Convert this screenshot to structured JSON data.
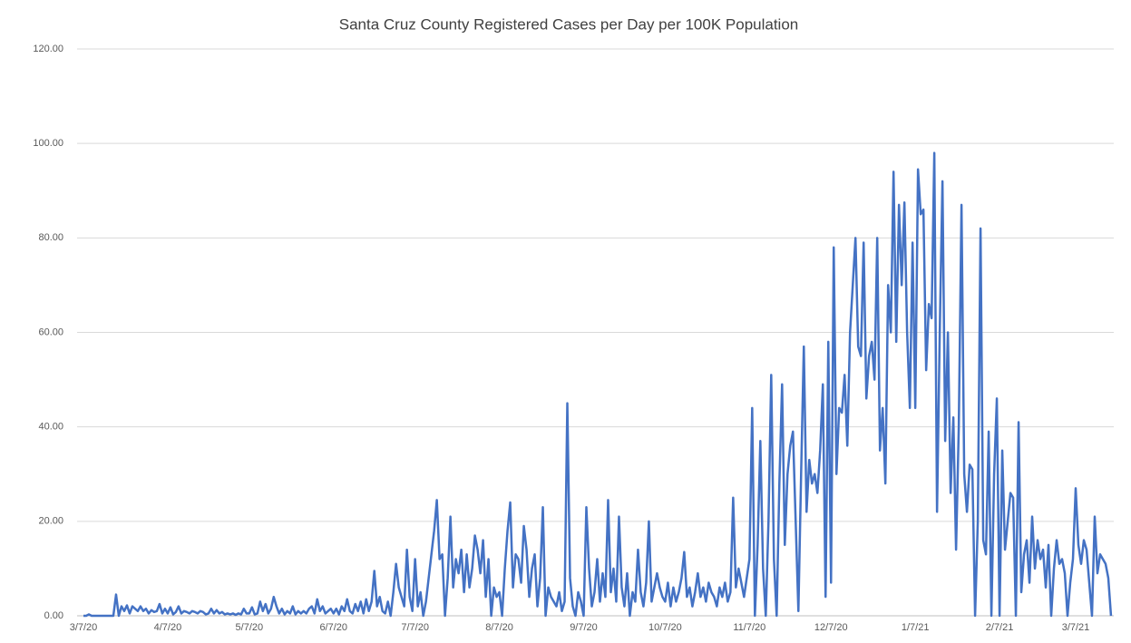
{
  "chart_data": {
    "type": "line",
    "title": "Santa Cruz County Registered Cases per Day per 100K Population",
    "categories": [
      "3/7/20",
      null,
      null,
      null,
      null,
      null,
      null,
      null,
      null,
      null,
      null,
      null,
      null,
      null,
      null,
      null,
      null,
      null,
      null,
      null,
      null,
      null,
      null,
      null,
      null,
      null,
      null,
      null,
      null,
      null,
      null,
      "4/7/20",
      null,
      null,
      null,
      null,
      null,
      null,
      null,
      null,
      null,
      null,
      null,
      null,
      null,
      null,
      null,
      null,
      null,
      null,
      null,
      null,
      null,
      null,
      null,
      null,
      null,
      null,
      null,
      null,
      null,
      "5/7/20",
      null,
      null,
      null,
      null,
      null,
      null,
      null,
      null,
      null,
      null,
      null,
      null,
      null,
      null,
      null,
      null,
      null,
      null,
      null,
      null,
      null,
      null,
      null,
      null,
      null,
      null,
      null,
      null,
      null,
      null,
      "6/7/20",
      null,
      null,
      null,
      null,
      null,
      null,
      null,
      null,
      null,
      null,
      null,
      null,
      null,
      null,
      null,
      null,
      null,
      null,
      null,
      null,
      null,
      null,
      null,
      null,
      null,
      null,
      null,
      null,
      null,
      "7/7/20",
      null,
      null,
      null,
      null,
      null,
      null,
      null,
      null,
      null,
      null,
      null,
      null,
      null,
      null,
      null,
      null,
      null,
      null,
      null,
      null,
      null,
      null,
      null,
      null,
      null,
      null,
      null,
      null,
      null,
      null,
      "8/7/20",
      null,
      null,
      null,
      null,
      null,
      null,
      null,
      null,
      null,
      null,
      null,
      null,
      null,
      null,
      null,
      null,
      null,
      null,
      null,
      null,
      null,
      null,
      null,
      null,
      null,
      null,
      null,
      null,
      null,
      null,
      "9/7/20",
      null,
      null,
      null,
      null,
      null,
      null,
      null,
      null,
      null,
      null,
      null,
      null,
      null,
      null,
      null,
      null,
      null,
      null,
      null,
      null,
      null,
      null,
      null,
      null,
      null,
      null,
      null,
      null,
      null,
      "10/7/20",
      null,
      null,
      null,
      null,
      null,
      null,
      null,
      null,
      null,
      null,
      null,
      null,
      null,
      null,
      null,
      null,
      null,
      null,
      null,
      null,
      null,
      null,
      null,
      null,
      null,
      null,
      null,
      null,
      null,
      null,
      "11/7/20",
      null,
      null,
      null,
      null,
      null,
      null,
      null,
      null,
      null,
      null,
      null,
      null,
      null,
      null,
      null,
      null,
      null,
      null,
      null,
      null,
      null,
      null,
      null,
      null,
      null,
      null,
      null,
      null,
      null,
      "12/7/20",
      null,
      null,
      null,
      null,
      null,
      null,
      null,
      null,
      null,
      null,
      null,
      null,
      null,
      null,
      null,
      null,
      null,
      null,
      null,
      null,
      null,
      null,
      null,
      null,
      null,
      null,
      null,
      null,
      null,
      null,
      "1/7/21",
      null,
      null,
      null,
      null,
      null,
      null,
      null,
      null,
      null,
      null,
      null,
      null,
      null,
      null,
      null,
      null,
      null,
      null,
      null,
      null,
      null,
      null,
      null,
      null,
      null,
      null,
      null,
      null,
      null,
      null,
      "2/7/21",
      null,
      null,
      null,
      null,
      null,
      null,
      null,
      null,
      null,
      null,
      null,
      null,
      null,
      null,
      null,
      null,
      null,
      null,
      null,
      null,
      null,
      null,
      null,
      null,
      null,
      null,
      null,
      "3/7/21",
      null,
      null,
      null,
      null,
      null,
      null,
      null,
      null,
      null,
      null,
      null,
      null,
      null
    ],
    "values": [
      0,
      0,
      0.3,
      0,
      0,
      0,
      0,
      0,
      0,
      0,
      0,
      0,
      4.5,
      0,
      2,
      1,
      2.2,
      0.5,
      2,
      1.5,
      1,
      2,
      1,
      1.5,
      0.5,
      1.2,
      0.8,
      1,
      2.5,
      0.5,
      1.5,
      0.5,
      1.8,
      0.3,
      0.8,
      2,
      0.5,
      1,
      0.8,
      0.5,
      1,
      0.8,
      0.5,
      1,
      0.8,
      0.3,
      0.5,
      1.5,
      0.5,
      1.2,
      0.5,
      0.8,
      0.3,
      0.5,
      0.3,
      0.5,
      0.2,
      0.5,
      0.3,
      1.5,
      0.5,
      0.5,
      1.8,
      0.3,
      0.5,
      3,
      1,
      2.5,
      0.5,
      1.5,
      4,
      2,
      0.5,
      1.5,
      0.3,
      1,
      0.5,
      2,
      0.3,
      1,
      0.5,
      1,
      0.5,
      1.5,
      2,
      0.5,
      3.5,
      1,
      2,
      0.5,
      1,
      1.5,
      0.5,
      1.5,
      0.3,
      2,
      1,
      3.5,
      1,
      0.5,
      2.5,
      1,
      3,
      0.5,
      3.5,
      1,
      3,
      9.5,
      2,
      4,
      1,
      0.5,
      3,
      0,
      5,
      11,
      6,
      4,
      2,
      14,
      4,
      1,
      12,
      2,
      5,
      0,
      3,
      8,
      13,
      18,
      24.5,
      12,
      13,
      0,
      8,
      21,
      6,
      12,
      9,
      14,
      5,
      13,
      6,
      10,
      17,
      14,
      9,
      16,
      4,
      12,
      0,
      6,
      4,
      5,
      0,
      10,
      18,
      24,
      6,
      13,
      12,
      7,
      19,
      14,
      4,
      10,
      13,
      2,
      8,
      23,
      0,
      6,
      4,
      3,
      2,
      5,
      1,
      3,
      45,
      8,
      2,
      0,
      5,
      3,
      0,
      23,
      10,
      2,
      5,
      12,
      3,
      9,
      4,
      24.5,
      5,
      10,
      3,
      21,
      6,
      2,
      9,
      0,
      5,
      3,
      14,
      5,
      2,
      7,
      20,
      3,
      6,
      9,
      6,
      4,
      3,
      7,
      2,
      6,
      3,
      5,
      8,
      13.5,
      4,
      6,
      2,
      5,
      9,
      4,
      6,
      3,
      7,
      5,
      4,
      2,
      6,
      4,
      7,
      3,
      5,
      25,
      6,
      10,
      7,
      4,
      8,
      12,
      44,
      0,
      15,
      37,
      10,
      0,
      20,
      51,
      12,
      0,
      28,
      49,
      15,
      30,
      36,
      39,
      20,
      1,
      30,
      57,
      22,
      33,
      28,
      30,
      26,
      35,
      49,
      4,
      58,
      7,
      78,
      30,
      44,
      43,
      51,
      36,
      60,
      70,
      80,
      57,
      55,
      79,
      46,
      55,
      58,
      50,
      80,
      35,
      44,
      28,
      70,
      60,
      94,
      58,
      87,
      70,
      87.5,
      60,
      44,
      79,
      44,
      94.5,
      85,
      86,
      52,
      66,
      63,
      98,
      22,
      60,
      92,
      37,
      60,
      26,
      42,
      14,
      40,
      87,
      30,
      22,
      32,
      31,
      0,
      20,
      82,
      16,
      13,
      39,
      0,
      30,
      46,
      0,
      35,
      14,
      20,
      26,
      25,
      0,
      41,
      5,
      13,
      16,
      7,
      21,
      10,
      16,
      12,
      14,
      6,
      15,
      0,
      10,
      16,
      11,
      12,
      9,
      0,
      7,
      12,
      27,
      15,
      11,
      16,
      14,
      7,
      0,
      21,
      9,
      13,
      12,
      11,
      8,
      0
    ],
    "color": "#4472c4",
    "ylim": [
      0,
      120
    ],
    "yticks": [
      {
        "value": 0,
        "label": "0.00"
      },
      {
        "value": 20,
        "label": "20.00"
      },
      {
        "value": 40,
        "label": "40.00"
      },
      {
        "value": 60,
        "label": "60.00"
      },
      {
        "value": 80,
        "label": "80.00"
      },
      {
        "value": 100,
        "label": "100.00"
      },
      {
        "value": 120,
        "label": "120.00"
      }
    ],
    "grid": true
  }
}
